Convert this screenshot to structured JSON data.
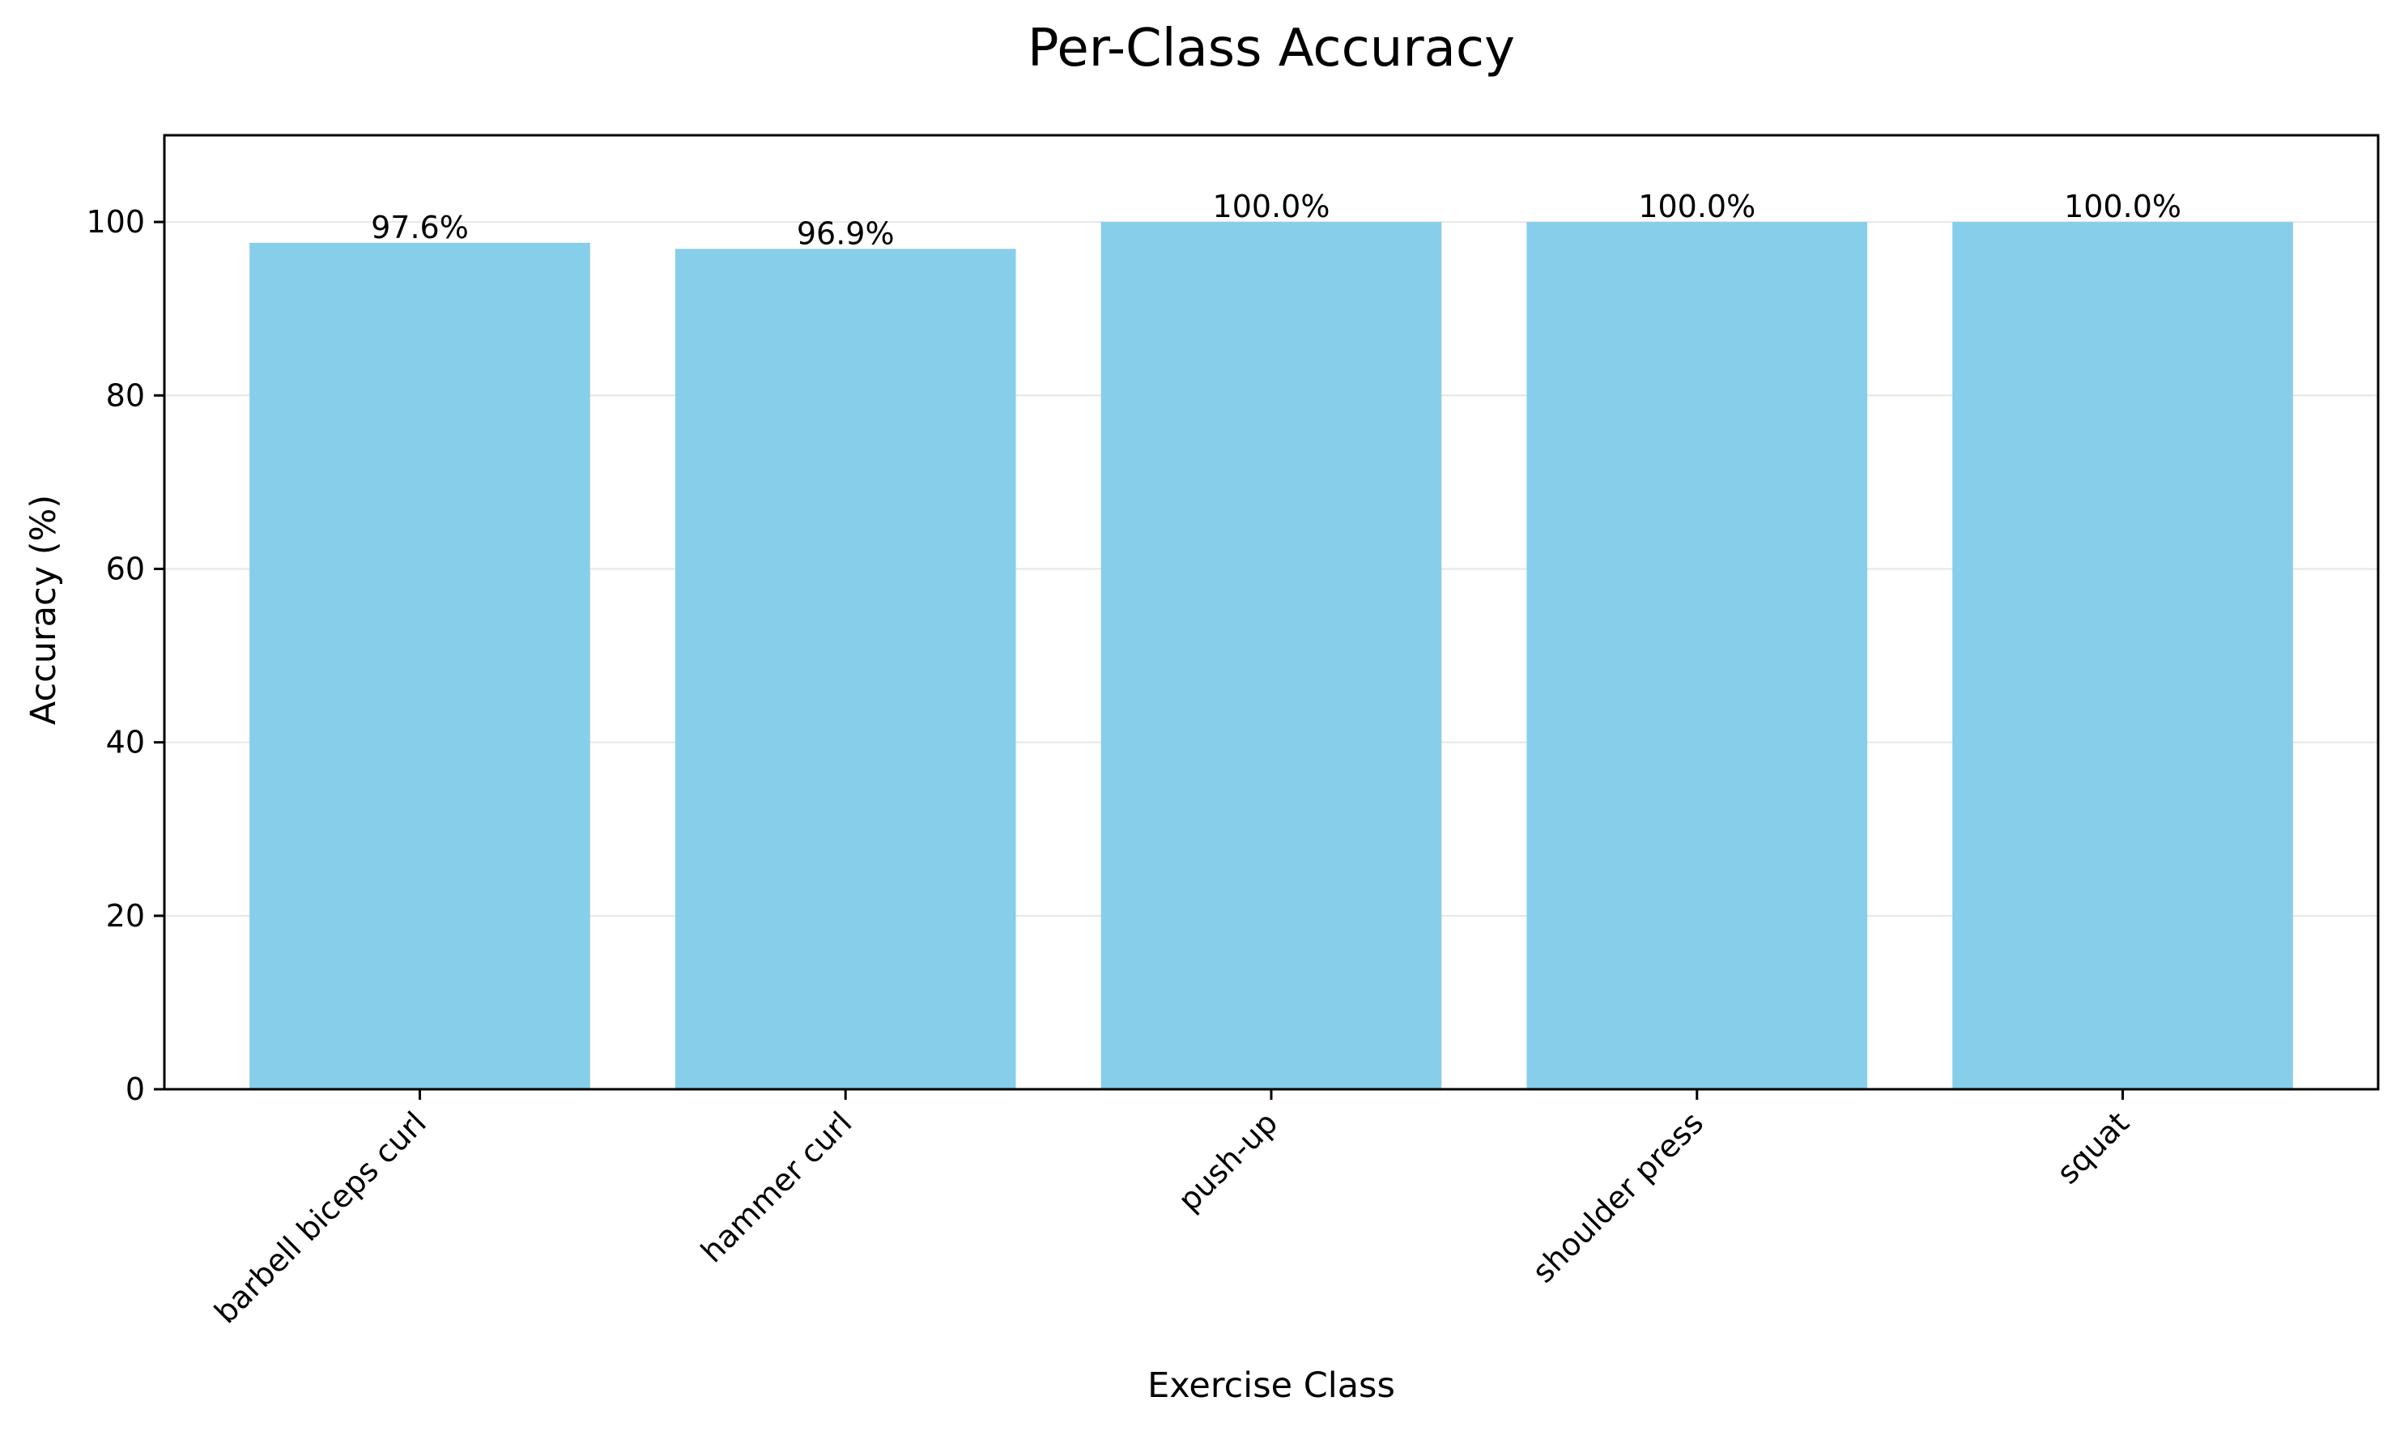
{
  "chart_data": {
    "type": "bar",
    "title": "Per-Class Accuracy",
    "xlabel": "Exercise Class",
    "ylabel": "Accuracy (%)",
    "categories": [
      "barbell biceps curl",
      "hammer curl",
      "push-up",
      "shoulder press",
      "squat"
    ],
    "values": [
      97.6,
      96.9,
      100.0,
      100.0,
      100.0
    ],
    "data_labels": [
      "97.6%",
      "96.9%",
      "100.0%",
      "100.0%",
      "100.0%"
    ],
    "ylim": [
      0,
      110
    ],
    "yticks": [
      0,
      20,
      40,
      60,
      80,
      100
    ],
    "ytick_labels": [
      "0",
      "20",
      "40",
      "60",
      "80",
      "100"
    ],
    "grid": "y-major",
    "legend": "none",
    "colors": {
      "bar": "#87CEEB",
      "grid": "#e6e6e6",
      "axis": "#000000"
    }
  }
}
